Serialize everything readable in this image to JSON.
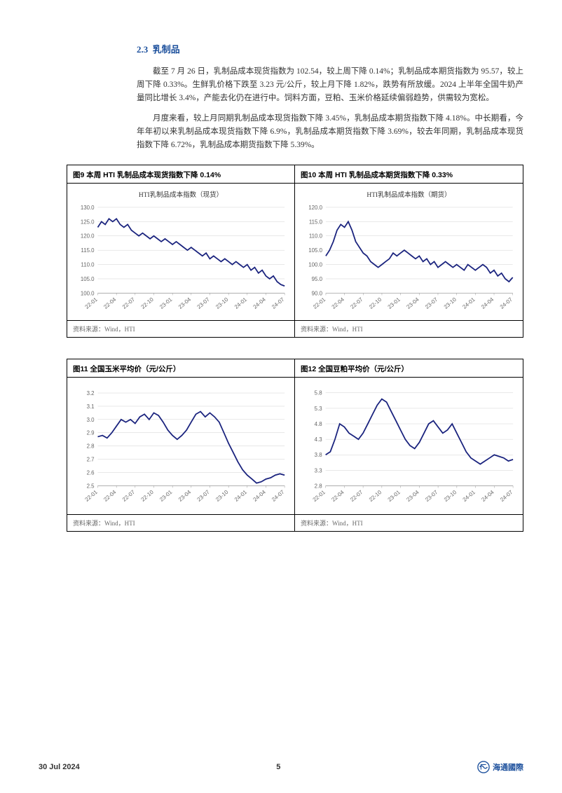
{
  "section": {
    "number": "2.3",
    "title": "乳制品"
  },
  "paragraphs": {
    "p1": "截至 7 月 26 日，乳制品成本现货指数为 102.54，较上周下降 0.14%；乳制品成本期货指数为 95.57，较上周下降 0.33%。生鲜乳价格下跌至 3.23 元/公斤，较上月下降 1.82%，跌势有所放缓。2024 上半年全国牛奶产量同比增长 3.4%，产能去化仍在进行中。饲料方面，豆粕、玉米价格延续偏弱趋势，供需较为宽松。",
    "p2": "月度来看，较上月同期乳制品成本现货指数下降 3.45%，乳制品成本期货指数下降 4.18%。中长期看，今年年初以来乳制品成本现货指数下降 6.9%，乳制品成本期货指数下降 3.69%，较去年同期，乳制品成本现货指数下降 6.72%，乳制品成本期货指数下降 5.39%。"
  },
  "charts": {
    "c9": {
      "title": "图9  本周 HTI 乳制品成本现货指数下降 0.14%",
      "subtitle": "HTI乳制品成本指数（现货）",
      "source": "资料来源：Wind，HTI",
      "type": "line",
      "line_color": "#1a237e",
      "line_width": 1.8,
      "background_color": "#ffffff",
      "grid_color": "#d0d0d0",
      "ylim": [
        100,
        130
      ],
      "ytick_step": 5,
      "yticks": [
        "100.0",
        "105.0",
        "110.0",
        "115.0",
        "120.0",
        "125.0",
        "130.0"
      ],
      "xticks": [
        "22-01",
        "22-04",
        "22-07",
        "22-10",
        "23-01",
        "23-04",
        "23-07",
        "23-10",
        "24-01",
        "24-04",
        "24-07"
      ],
      "values": [
        123,
        125,
        124,
        126,
        125,
        126,
        124,
        123,
        124,
        122,
        121,
        120,
        121,
        120,
        119,
        120,
        119,
        118,
        119,
        118,
        117,
        118,
        117,
        116,
        115,
        116,
        115,
        114,
        113,
        114,
        112,
        113,
        112,
        111,
        112,
        111,
        110,
        111,
        110,
        109,
        110,
        108,
        109,
        107,
        108,
        106,
        105,
        106,
        104,
        103,
        102.5
      ]
    },
    "c10": {
      "title": "图10 本周 HTI 乳制品成本期货指数下降 0.33%",
      "subtitle": "HTI乳制品成本指数（期货）",
      "source": "资料来源：Wind，HTI",
      "type": "line",
      "line_color": "#1a237e",
      "line_width": 1.8,
      "background_color": "#ffffff",
      "grid_color": "#d0d0d0",
      "ylim": [
        90,
        120
      ],
      "ytick_step": 5,
      "yticks": [
        "90.0",
        "95.0",
        "100.0",
        "105.0",
        "110.0",
        "115.0",
        "120.0"
      ],
      "xticks": [
        "22-01",
        "22-04",
        "22-07",
        "22-10",
        "23-01",
        "23-04",
        "23-07",
        "23-10",
        "24-01",
        "24-04",
        "24-07"
      ],
      "values": [
        103,
        105,
        108,
        112,
        114,
        113,
        115,
        112,
        108,
        106,
        104,
        103,
        101,
        100,
        99,
        100,
        101,
        102,
        104,
        103,
        104,
        105,
        104,
        103,
        102,
        103,
        101,
        102,
        100,
        101,
        99,
        100,
        101,
        100,
        99,
        100,
        99,
        98,
        100,
        99,
        98,
        99,
        100,
        99,
        97,
        98,
        96,
        97,
        95,
        94,
        95.5
      ]
    },
    "c11": {
      "title": "图11 全国玉米平均价（元/公斤）",
      "subtitle": "",
      "source": "资料来源：Wind，HTI",
      "type": "line",
      "line_color": "#1a237e",
      "line_width": 1.8,
      "background_color": "#ffffff",
      "grid_color": "#d0d0d0",
      "ylim": [
        2.5,
        3.2
      ],
      "ytick_step": 0.1,
      "yticks": [
        "2.5",
        "2.6",
        "2.7",
        "2.8",
        "2.9",
        "3.0",
        "3.1",
        "3.2"
      ],
      "xticks": [
        "22-01",
        "22-04",
        "22-07",
        "22-10",
        "23-01",
        "23-04",
        "23-07",
        "23-10",
        "24-01",
        "24-04",
        "24-07"
      ],
      "values": [
        2.87,
        2.88,
        2.86,
        2.9,
        2.95,
        3.0,
        2.98,
        3.0,
        2.97,
        3.02,
        3.04,
        3.0,
        3.05,
        3.03,
        2.98,
        2.92,
        2.88,
        2.85,
        2.88,
        2.92,
        2.98,
        3.04,
        3.06,
        3.02,
        3.05,
        3.02,
        2.98,
        2.9,
        2.82,
        2.75,
        2.68,
        2.62,
        2.58,
        2.55,
        2.52,
        2.53,
        2.55,
        2.56,
        2.58,
        2.59,
        2.58
      ]
    },
    "c12": {
      "title": "图12 全国豆粕平均价（元/公斤）",
      "subtitle": "",
      "source": "资料来源：Wind，HTI",
      "type": "line",
      "line_color": "#1a237e",
      "line_width": 1.8,
      "background_color": "#ffffff",
      "grid_color": "#d0d0d0",
      "ylim": [
        2.8,
        5.8
      ],
      "ytick_step": 0.5,
      "yticks": [
        "2.8",
        "3.3",
        "3.8",
        "4.3",
        "4.8",
        "5.3",
        "5.8"
      ],
      "xticks": [
        "22-01",
        "22-04",
        "22-07",
        "22-10",
        "23-01",
        "23-04",
        "23-07",
        "23-10",
        "24-01",
        "24-04",
        "24-07"
      ],
      "values": [
        3.8,
        3.9,
        4.3,
        4.8,
        4.7,
        4.5,
        4.4,
        4.3,
        4.5,
        4.8,
        5.1,
        5.4,
        5.6,
        5.5,
        5.2,
        4.9,
        4.6,
        4.3,
        4.1,
        4.0,
        4.2,
        4.5,
        4.8,
        4.9,
        4.7,
        4.5,
        4.6,
        4.8,
        4.5,
        4.2,
        3.9,
        3.7,
        3.6,
        3.5,
        3.6,
        3.7,
        3.8,
        3.75,
        3.7,
        3.6,
        3.65
      ]
    }
  },
  "footer": {
    "date": "30 Jul 2024",
    "page": "5",
    "brand": "海通國際"
  },
  "style": {
    "heading_color": "#1B4F9C",
    "text_color": "#333333",
    "label_fontsize": 8
  }
}
